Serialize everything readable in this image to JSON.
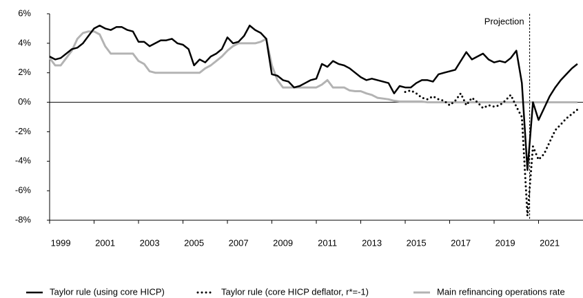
{
  "chart_data": {
    "type": "line",
    "x": [
      1999,
      1999.25,
      1999.5,
      1999.75,
      2000,
      2000.25,
      2000.5,
      2000.75,
      2001,
      2001.25,
      2001.5,
      2001.75,
      2002,
      2002.25,
      2002.5,
      2002.75,
      2003,
      2003.25,
      2003.5,
      2003.75,
      2004,
      2004.25,
      2004.5,
      2004.75,
      2005,
      2005.25,
      2005.5,
      2005.75,
      2006,
      2006.25,
      2006.5,
      2006.75,
      2007,
      2007.25,
      2007.5,
      2007.75,
      2008,
      2008.25,
      2008.5,
      2008.75,
      2009,
      2009.25,
      2009.5,
      2009.75,
      2010,
      2010.25,
      2010.5,
      2010.75,
      2011,
      2011.25,
      2011.5,
      2011.75,
      2012,
      2012.25,
      2012.5,
      2012.75,
      2013,
      2013.25,
      2013.5,
      2013.75,
      2014,
      2014.25,
      2014.5,
      2014.75,
      2015,
      2015.25,
      2015.5,
      2015.75,
      2016,
      2016.25,
      2016.5,
      2016.75,
      2017,
      2017.25,
      2017.5,
      2017.75,
      2018,
      2018.25,
      2018.5,
      2018.75,
      2019,
      2019.25,
      2019.5,
      2019.75,
      2020,
      2020.25,
      2020.5,
      2020.75,
      2021,
      2021.25,
      2021.5,
      2021.75,
      2022,
      2022.25,
      2022.5,
      2022.75
    ],
    "series": [
      {
        "name": "Taylor rule (using core HICP)",
        "color": "#000000",
        "style": "solid",
        "values": [
          3.1,
          2.9,
          3.0,
          3.3,
          3.6,
          3.7,
          4.0,
          4.5,
          5.0,
          5.2,
          5.0,
          4.9,
          5.1,
          5.1,
          4.9,
          4.8,
          4.1,
          4.1,
          3.8,
          4.0,
          4.2,
          4.2,
          4.3,
          4.0,
          3.9,
          3.6,
          2.5,
          2.9,
          2.7,
          3.1,
          3.3,
          3.6,
          4.4,
          4.0,
          4.1,
          4.5,
          5.2,
          4.9,
          4.7,
          4.3,
          1.9,
          1.8,
          1.5,
          1.4,
          1.0,
          1.1,
          1.3,
          1.5,
          1.6,
          2.6,
          2.4,
          2.8,
          2.6,
          2.5,
          2.3,
          2.0,
          1.7,
          1.5,
          1.6,
          1.5,
          1.4,
          1.3,
          0.6,
          1.1,
          1.0,
          1.0,
          1.3,
          1.5,
          1.5,
          1.4,
          1.9,
          2.0,
          2.1,
          2.2,
          2.8,
          3.4,
          2.9,
          3.1,
          3.3,
          2.9,
          2.7,
          2.8,
          2.7,
          3.0,
          3.5,
          1.3,
          -4.6,
          0.0,
          -1.2,
          -0.4,
          0.4,
          1.0,
          1.5,
          1.9,
          2.3,
          2.6
        ]
      },
      {
        "name": "Taylor rule (core HICP deflator, r*=-1)",
        "color": "#000000",
        "style": "dotted",
        "values": [
          null,
          null,
          null,
          null,
          null,
          null,
          null,
          null,
          null,
          null,
          null,
          null,
          null,
          null,
          null,
          null,
          null,
          null,
          null,
          null,
          null,
          null,
          null,
          null,
          null,
          null,
          null,
          null,
          null,
          null,
          null,
          null,
          null,
          null,
          null,
          null,
          null,
          null,
          null,
          null,
          null,
          null,
          null,
          null,
          null,
          null,
          null,
          null,
          null,
          null,
          null,
          null,
          null,
          null,
          null,
          null,
          null,
          null,
          null,
          null,
          null,
          null,
          null,
          null,
          0.7,
          0.8,
          0.6,
          0.3,
          0.2,
          0.4,
          0.2,
          0.1,
          -0.2,
          0.1,
          0.6,
          -0.2,
          0.3,
          0.0,
          -0.4,
          -0.2,
          -0.3,
          -0.2,
          0.1,
          0.5,
          -0.3,
          -1.0,
          -7.7,
          -3.0,
          -3.9,
          -3.5,
          -2.7,
          -1.9,
          -1.5,
          -1.1,
          -0.8,
          -0.5
        ]
      },
      {
        "name": "Main refinancing operations rate",
        "color": "#b3b3b3",
        "style": "solid",
        "values": [
          3.0,
          2.5,
          2.5,
          3.0,
          3.5,
          4.3,
          4.7,
          4.8,
          4.8,
          4.6,
          3.8,
          3.3,
          3.3,
          3.3,
          3.3,
          3.3,
          2.8,
          2.6,
          2.1,
          2.0,
          2.0,
          2.0,
          2.0,
          2.0,
          2.0,
          2.0,
          2.0,
          2.0,
          2.3,
          2.5,
          2.8,
          3.1,
          3.5,
          3.8,
          4.0,
          4.0,
          4.0,
          4.0,
          4.1,
          4.3,
          2.5,
          1.5,
          1.0,
          1.0,
          1.0,
          1.0,
          1.0,
          1.0,
          1.0,
          1.2,
          1.5,
          1.0,
          1.0,
          1.0,
          0.8,
          0.75,
          0.75,
          0.6,
          0.5,
          0.3,
          0.25,
          0.2,
          0.1,
          0.05,
          0.05,
          0.05,
          0.05,
          0.05,
          0,
          0,
          0,
          0,
          0,
          0,
          0,
          0,
          0,
          0,
          0,
          0,
          0,
          0,
          0,
          0,
          0,
          0,
          0,
          0,
          0,
          0,
          0,
          0,
          0,
          0,
          0,
          0
        ]
      }
    ],
    "xlim": [
      1999,
      2023
    ],
    "xticks": [
      1999,
      2001,
      2003,
      2005,
      2007,
      2009,
      2011,
      2013,
      2015,
      2017,
      2019,
      2021
    ],
    "ylim": [
      -8,
      6
    ],
    "yticks": [
      {
        "value": -8,
        "label": "-8%"
      },
      {
        "value": -6,
        "label": "-6%"
      },
      {
        "value": -4,
        "label": "-4%"
      },
      {
        "value": -2,
        "label": "-2%"
      },
      {
        "value": 0,
        "label": "0%"
      },
      {
        "value": 2,
        "label": "2%"
      },
      {
        "value": 4,
        "label": "4%"
      },
      {
        "value": 6,
        "label": "6%"
      }
    ],
    "annotations": [
      {
        "text": "Projection",
        "x": 2020.6
      }
    ],
    "legend": "bottom"
  }
}
